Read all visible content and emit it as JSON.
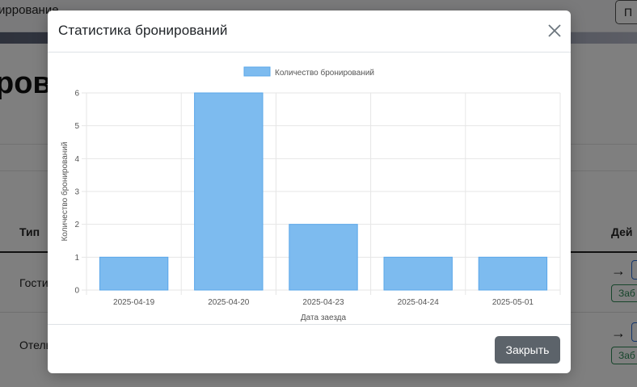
{
  "background": {
    "nav_text": "иррование",
    "nav_button": "П",
    "heading": "рова",
    "table_header_left": "Тип",
    "table_header_right": "Дей",
    "rows": [
      {
        "type": "Гости",
        "action": "Заб"
      },
      {
        "type": "Отель",
        "action": "Заб"
      }
    ],
    "arrow": "→"
  },
  "modal": {
    "title": "Статистика бронирований",
    "close_icon": "close-icon",
    "close_button_label": "Закрыть"
  },
  "chart_data": {
    "type": "bar",
    "categories": [
      "2025-04-19",
      "2025-04-20",
      "2025-04-23",
      "2025-04-24",
      "2025-05-01"
    ],
    "series": [
      {
        "name": "Количество бронирований",
        "values": [
          1,
          6,
          2,
          1,
          1
        ]
      }
    ],
    "xlabel": "Дата заезда",
    "ylabel": "Количество бронирований",
    "ylim": [
      0,
      6
    ],
    "yticks": [
      0,
      1,
      2,
      3,
      4,
      5,
      6
    ],
    "grid": true,
    "legend_position": "top-center",
    "colors": {
      "bar_fill": "#7dbbef",
      "bar_stroke": "#5aa7ea",
      "grid": "#e6e6e6"
    }
  }
}
